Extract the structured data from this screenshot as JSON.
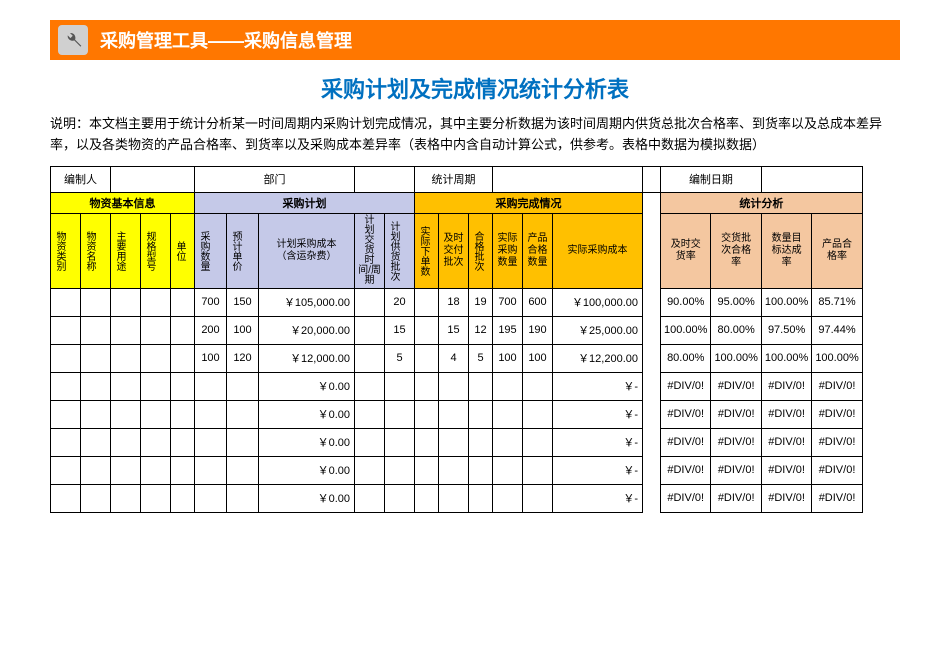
{
  "colors": {
    "orange": "#ff7700",
    "title_blue": "#0070c0",
    "yellow": "#ffff00",
    "lavender": "#c5c9e8",
    "gold": "#ffc000",
    "peach": "#f4c7a0"
  },
  "header": {
    "title": "采购管理工具——采购信息管理"
  },
  "page_title": "采购计划及完成情况统计分析表",
  "description": "说明：本文档主要用于统计分析某一时间周期内采购计划完成情况，其中主要分析数据为该时间周期内供货总批次合格率、到货率以及总成本差异率，以及各类物资的产品合格率、到货率以及采购成本差异率（表格中内含自动计算公式，供参考。表格中数据为模拟数据）",
  "meta": {
    "labels": {
      "author": "编制人",
      "dept": "部门",
      "period": "统计周期",
      "date": "编制日期"
    },
    "values": {
      "author": "",
      "dept": "",
      "period": "",
      "date": ""
    }
  },
  "groups": {
    "basic": "物资基本信息",
    "plan": "采购计划",
    "complete": "采购完成情况",
    "analysis": "统计分析"
  },
  "columns": {
    "basic": [
      "物资类别",
      "物资名称",
      "主要用途",
      "规格型号",
      "单位"
    ],
    "plan": [
      "采购数量",
      "预计单价",
      "计划采购成本（含运杂费）",
      "计划交货时间/周期",
      "计划供货批次"
    ],
    "complete": [
      "实际下单数",
      "及时交付批次",
      "合格批次",
      "实际采购数量",
      "产品合格数量",
      "实际采购成本"
    ],
    "analysis": [
      "及时交货率",
      "交货批次合格率",
      "数量目标达成率",
      "产品合格率"
    ]
  },
  "rows": [
    {
      "basic": [
        "",
        "",
        "",
        "",
        ""
      ],
      "plan_qty": "700",
      "plan_price": "150",
      "plan_cost": "￥105,000.00",
      "plan_time": "",
      "plan_batch": "20",
      "act_order": "",
      "ontime_batch": "18",
      "ok_batch": "19",
      "act_qty": "700",
      "ok_qty": "600",
      "act_cost": "￥100,000.00",
      "rate_ontime": "90.00%",
      "rate_batch_ok": "95.00%",
      "rate_qty": "100.00%",
      "rate_prod_ok": "85.71%"
    },
    {
      "basic": [
        "",
        "",
        "",
        "",
        ""
      ],
      "plan_qty": "200",
      "plan_price": "100",
      "plan_cost": "￥20,000.00",
      "plan_time": "",
      "plan_batch": "15",
      "act_order": "",
      "ontime_batch": "15",
      "ok_batch": "12",
      "act_qty": "195",
      "ok_qty": "190",
      "act_cost": "￥25,000.00",
      "rate_ontime": "100.00%",
      "rate_batch_ok": "80.00%",
      "rate_qty": "97.50%",
      "rate_prod_ok": "97.44%"
    },
    {
      "basic": [
        "",
        "",
        "",
        "",
        ""
      ],
      "plan_qty": "100",
      "plan_price": "120",
      "plan_cost": "￥12,000.00",
      "plan_time": "",
      "plan_batch": "5",
      "act_order": "",
      "ontime_batch": "4",
      "ok_batch": "5",
      "act_qty": "100",
      "ok_qty": "100",
      "act_cost": "￥12,200.00",
      "rate_ontime": "80.00%",
      "rate_batch_ok": "100.00%",
      "rate_qty": "100.00%",
      "rate_prod_ok": "100.00%"
    },
    {
      "basic": [
        "",
        "",
        "",
        "",
        ""
      ],
      "plan_qty": "",
      "plan_price": "",
      "plan_cost": "￥0.00",
      "plan_time": "",
      "plan_batch": "",
      "act_order": "",
      "ontime_batch": "",
      "ok_batch": "",
      "act_qty": "",
      "ok_qty": "",
      "act_cost": "￥-",
      "rate_ontime": "#DIV/0!",
      "rate_batch_ok": "#DIV/0!",
      "rate_qty": "#DIV/0!",
      "rate_prod_ok": "#DIV/0!"
    },
    {
      "basic": [
        "",
        "",
        "",
        "",
        ""
      ],
      "plan_qty": "",
      "plan_price": "",
      "plan_cost": "￥0.00",
      "plan_time": "",
      "plan_batch": "",
      "act_order": "",
      "ontime_batch": "",
      "ok_batch": "",
      "act_qty": "",
      "ok_qty": "",
      "act_cost": "￥-",
      "rate_ontime": "#DIV/0!",
      "rate_batch_ok": "#DIV/0!",
      "rate_qty": "#DIV/0!",
      "rate_prod_ok": "#DIV/0!"
    },
    {
      "basic": [
        "",
        "",
        "",
        "",
        ""
      ],
      "plan_qty": "",
      "plan_price": "",
      "plan_cost": "￥0.00",
      "plan_time": "",
      "plan_batch": "",
      "act_order": "",
      "ontime_batch": "",
      "ok_batch": "",
      "act_qty": "",
      "ok_qty": "",
      "act_cost": "￥-",
      "rate_ontime": "#DIV/0!",
      "rate_batch_ok": "#DIV/0!",
      "rate_qty": "#DIV/0!",
      "rate_prod_ok": "#DIV/0!"
    },
    {
      "basic": [
        "",
        "",
        "",
        "",
        ""
      ],
      "plan_qty": "",
      "plan_price": "",
      "plan_cost": "￥0.00",
      "plan_time": "",
      "plan_batch": "",
      "act_order": "",
      "ontime_batch": "",
      "ok_batch": "",
      "act_qty": "",
      "ok_qty": "",
      "act_cost": "￥-",
      "rate_ontime": "#DIV/0!",
      "rate_batch_ok": "#DIV/0!",
      "rate_qty": "#DIV/0!",
      "rate_prod_ok": "#DIV/0!"
    },
    {
      "basic": [
        "",
        "",
        "",
        "",
        ""
      ],
      "plan_qty": "",
      "plan_price": "",
      "plan_cost": "￥0.00",
      "plan_time": "",
      "plan_batch": "",
      "act_order": "",
      "ontime_batch": "",
      "ok_batch": "",
      "act_qty": "",
      "ok_qty": "",
      "act_cost": "￥-",
      "rate_ontime": "#DIV/0!",
      "rate_batch_ok": "#DIV/0!",
      "rate_qty": "#DIV/0!",
      "rate_prod_ok": "#DIV/0!"
    }
  ],
  "col_widths": {
    "basic": [
      30,
      30,
      30,
      30,
      24
    ],
    "plan": [
      32,
      32,
      96,
      30,
      30
    ],
    "complete": [
      24,
      30,
      24,
      30,
      30,
      90
    ],
    "gap": 18,
    "analysis": [
      50,
      50,
      50,
      50
    ]
  }
}
